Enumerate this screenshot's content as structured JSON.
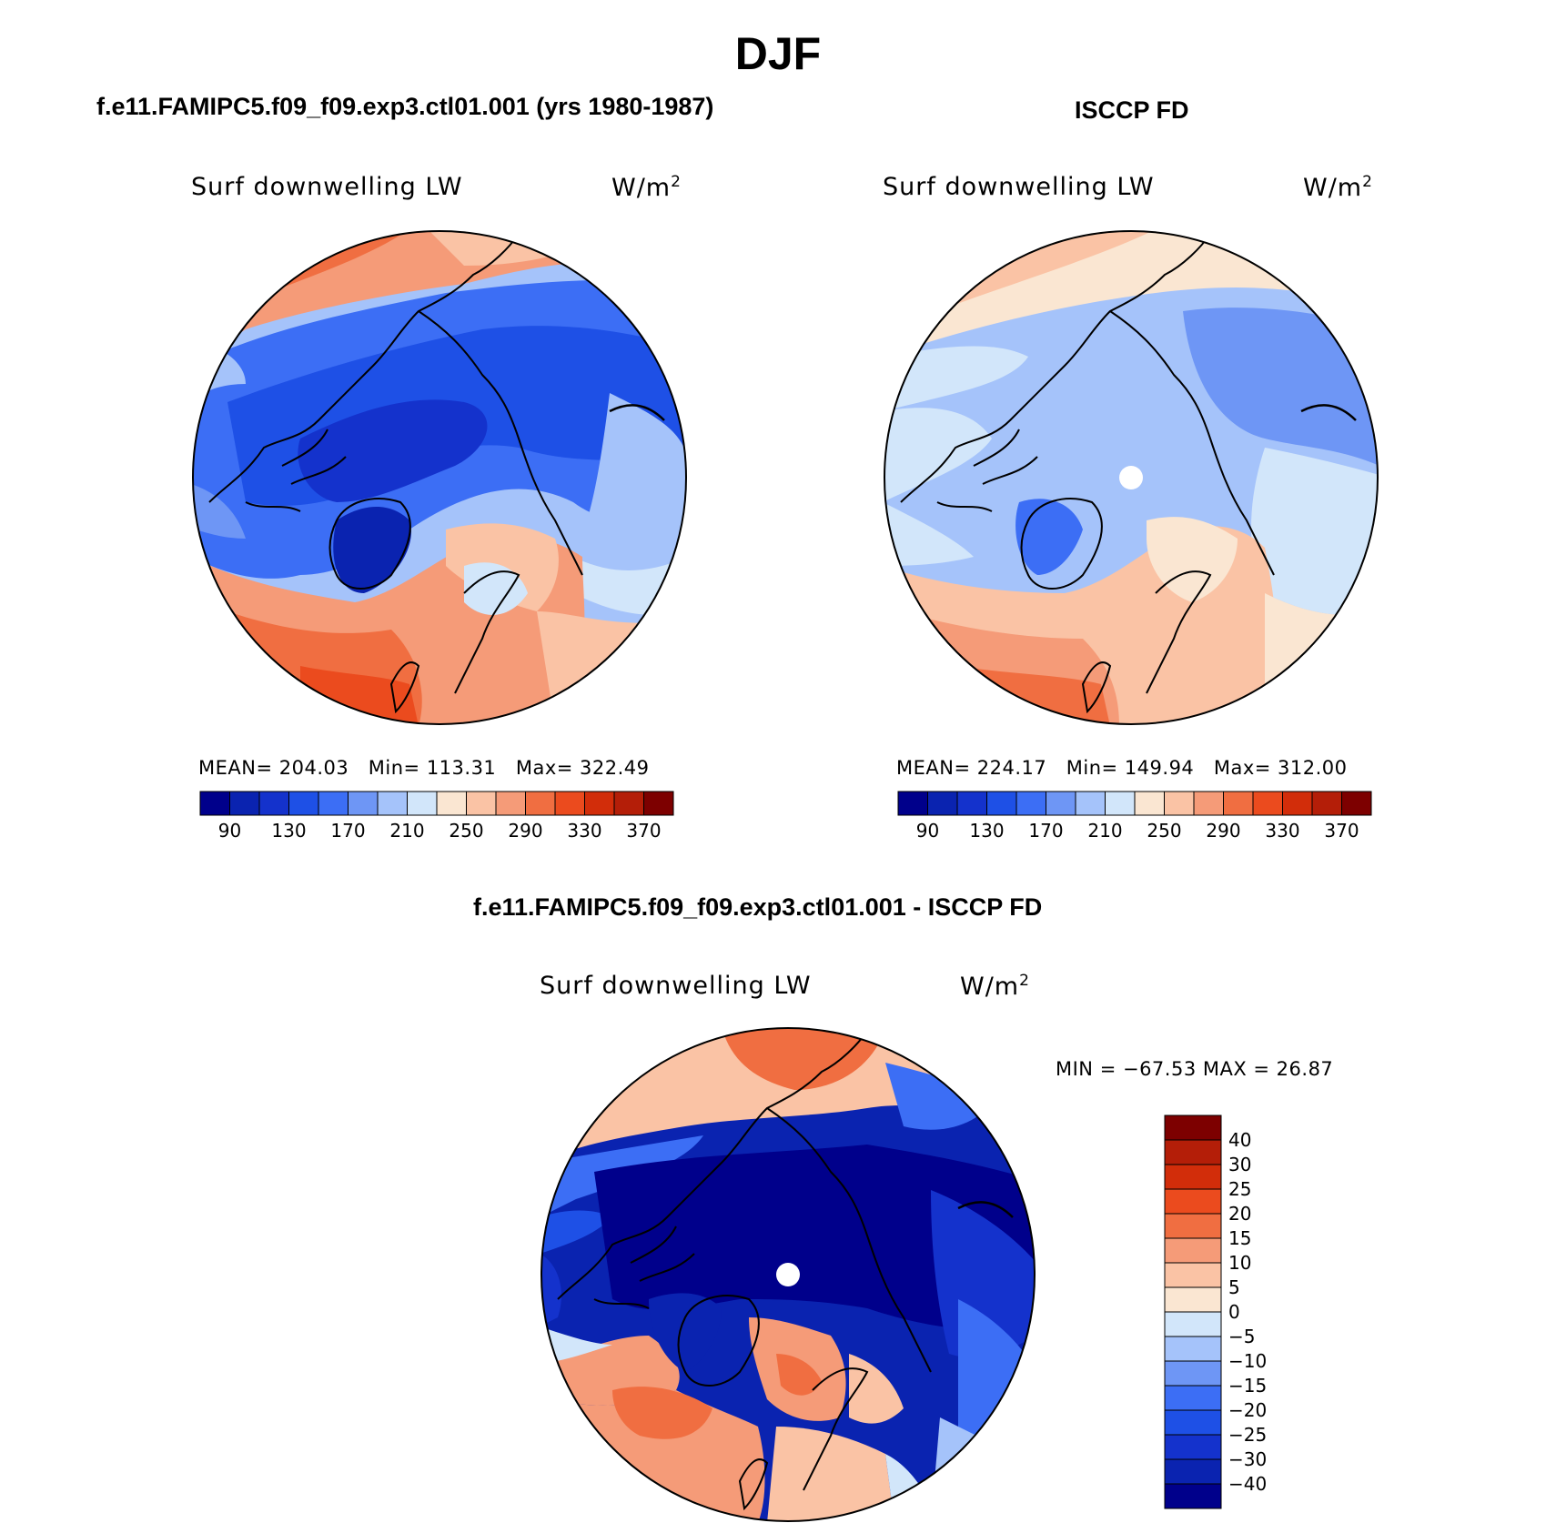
{
  "figure": {
    "title": "DJF"
  },
  "panels": [
    {
      "case_title": "f.e11.FAMIPC5.f09_f09.exp3.ctl01.001 (yrs 1980-1987)",
      "variable": "Surf downwelling LW",
      "units": "W/m",
      "units_sup": "2",
      "stats": {
        "mean_label": "MEAN=",
        "mean": "204.03",
        "min_label": "Min=",
        "min": "113.31",
        "max_label": "Max=",
        "max": "322.49"
      }
    },
    {
      "case_title": "ISCCP FD",
      "variable": "Surf downwelling LW",
      "units": "W/m",
      "units_sup": "2",
      "stats": {
        "mean_label": "MEAN=",
        "mean": "224.17",
        "min_label": "Min=",
        "min": "149.94",
        "max_label": "Max=",
        "max": "312.00"
      }
    },
    {
      "case_title": "f.e11.FAMIPC5.f09_f09.exp3.ctl01.001 - ISCCP FD",
      "variable": "Surf downwelling LW",
      "units": "W/m",
      "units_sup": "2",
      "stats_text": "MIN = −67.53 MAX =   26.87"
    }
  ],
  "colorbars": {
    "absolute": {
      "colors": [
        "#00008b",
        "#0a23b0",
        "#1432cc",
        "#1e50e6",
        "#3c6ef5",
        "#6e96f5",
        "#a5c3fa",
        "#d2e6fa",
        "#fae6d2",
        "#fac3a5",
        "#f59b78",
        "#f06e41",
        "#eb4b1e",
        "#d22d0a",
        "#b41e08",
        "#7d0000"
      ],
      "labels": [
        "90",
        "130",
        "170",
        "210",
        "250",
        "290",
        "330",
        "370"
      ]
    },
    "difference": {
      "colors": [
        "#7d0000",
        "#b41e08",
        "#d22d0a",
        "#eb4b1e",
        "#f06e41",
        "#f59b78",
        "#fac3a5",
        "#fae6d2",
        "#d2e6fa",
        "#a5c3fa",
        "#6e96f5",
        "#3c6ef5",
        "#1e50e6",
        "#1432cc",
        "#0a23b0",
        "#00008b"
      ],
      "labels": [
        "40",
        "30",
        "25",
        "20",
        "15",
        "10",
        "5",
        "0",
        "−5",
        "−10",
        "−15",
        "−20",
        "−25",
        "−30",
        "−40"
      ]
    }
  },
  "chart_data": [
    {
      "type": "heatmap",
      "projection": "north polar stereographic",
      "title": "Surf downwelling LW",
      "units": "W/m2",
      "mean": 204.03,
      "min": 113.31,
      "max": 322.49,
      "contour_levels": [
        90,
        110,
        130,
        150,
        170,
        190,
        210,
        230,
        250,
        270,
        290,
        310,
        330,
        350,
        370
      ],
      "colorbar_tick_labels": [
        90,
        130,
        170,
        210,
        250,
        290,
        330,
        370
      ]
    },
    {
      "type": "heatmap",
      "projection": "north polar stereographic",
      "title": "Surf downwelling LW",
      "units": "W/m2",
      "mean": 224.17,
      "min": 149.94,
      "max": 312.0,
      "contour_levels": [
        90,
        110,
        130,
        150,
        170,
        190,
        210,
        230,
        250,
        270,
        290,
        310,
        330,
        350,
        370
      ],
      "colorbar_tick_labels": [
        90,
        130,
        170,
        210,
        250,
        290,
        330,
        370
      ]
    },
    {
      "type": "heatmap",
      "projection": "north polar stereographic",
      "title": "Surf downwelling LW",
      "units": "W/m2",
      "min": -67.53,
      "max": 26.87,
      "contour_levels": [
        -40,
        -30,
        -25,
        -20,
        -15,
        -10,
        -5,
        0,
        5,
        10,
        15,
        20,
        25,
        30,
        40
      ]
    }
  ]
}
